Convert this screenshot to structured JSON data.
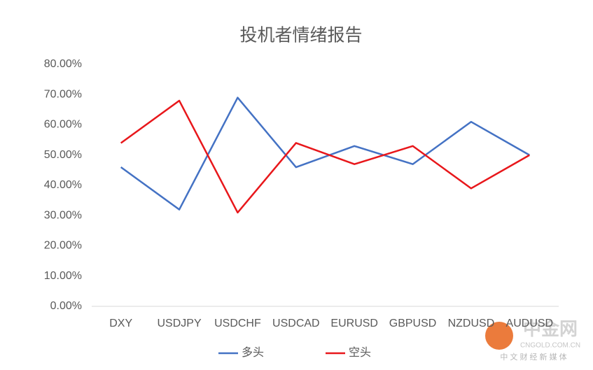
{
  "chart_data": {
    "type": "line",
    "title": "投机者情绪报告",
    "categories": [
      "DXY",
      "USDJPY",
      "USDCHF",
      "USDCAD",
      "EURUSD",
      "GBPUSD",
      "NZDUSD",
      "AUDUSD"
    ],
    "series": [
      {
        "name": "多头",
        "color": "#4472c4",
        "values": [
          46,
          32,
          69,
          46,
          53,
          47,
          61,
          50
        ]
      },
      {
        "name": "空头",
        "color": "#e8171b",
        "values": [
          54,
          68,
          31,
          54,
          47,
          53,
          39,
          50
        ]
      }
    ],
    "ylim": [
      0,
      80
    ],
    "yticks": [
      {
        "value": 0,
        "label": "0.00%"
      },
      {
        "value": 10,
        "label": "10.00%"
      },
      {
        "value": 20,
        "label": "20.00%"
      },
      {
        "value": 30,
        "label": "30.00%"
      },
      {
        "value": 40,
        "label": "40.00%"
      },
      {
        "value": 50,
        "label": "50.00%"
      },
      {
        "value": 60,
        "label": "60.00%"
      },
      {
        "value": 70,
        "label": "70.00%"
      },
      {
        "value": 80,
        "label": "80.00%"
      }
    ],
    "grid": false,
    "legend": "bottom"
  },
  "watermark": {
    "name": "中金网",
    "url": "CNGOLD.COM.CN",
    "tagline": "中 文 财 经 新 媒 体"
  }
}
